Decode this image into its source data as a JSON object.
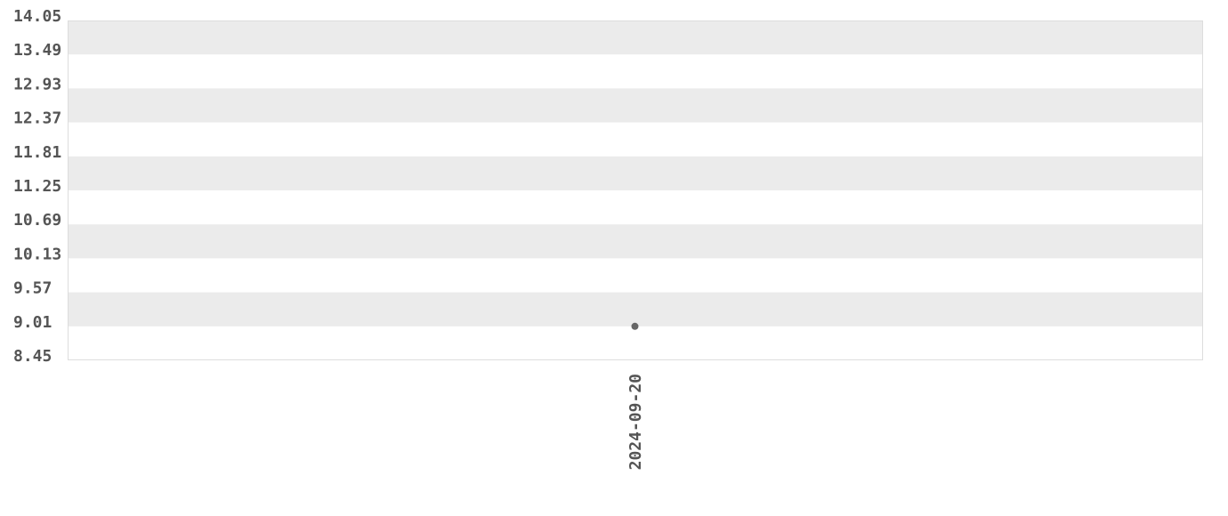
{
  "chart_data": {
    "type": "scatter",
    "title": "",
    "xlabel": "",
    "ylabel": "",
    "ylim": [
      8.45,
      14.05
    ],
    "y_ticks": [
      "8.45",
      "9.01",
      "9.57",
      "10.13",
      "10.69",
      "11.25",
      "11.81",
      "12.37",
      "12.93",
      "13.49",
      "14.05"
    ],
    "x_ticks": [
      "2024-09-20"
    ],
    "grid": "alternating horizontal bands",
    "points": [
      {
        "x": "2024-09-20",
        "y": 9.01
      }
    ],
    "colors": {
      "band": "#ebebeb",
      "point": "#666666",
      "text": "#555555",
      "border": "#dddddd"
    }
  }
}
